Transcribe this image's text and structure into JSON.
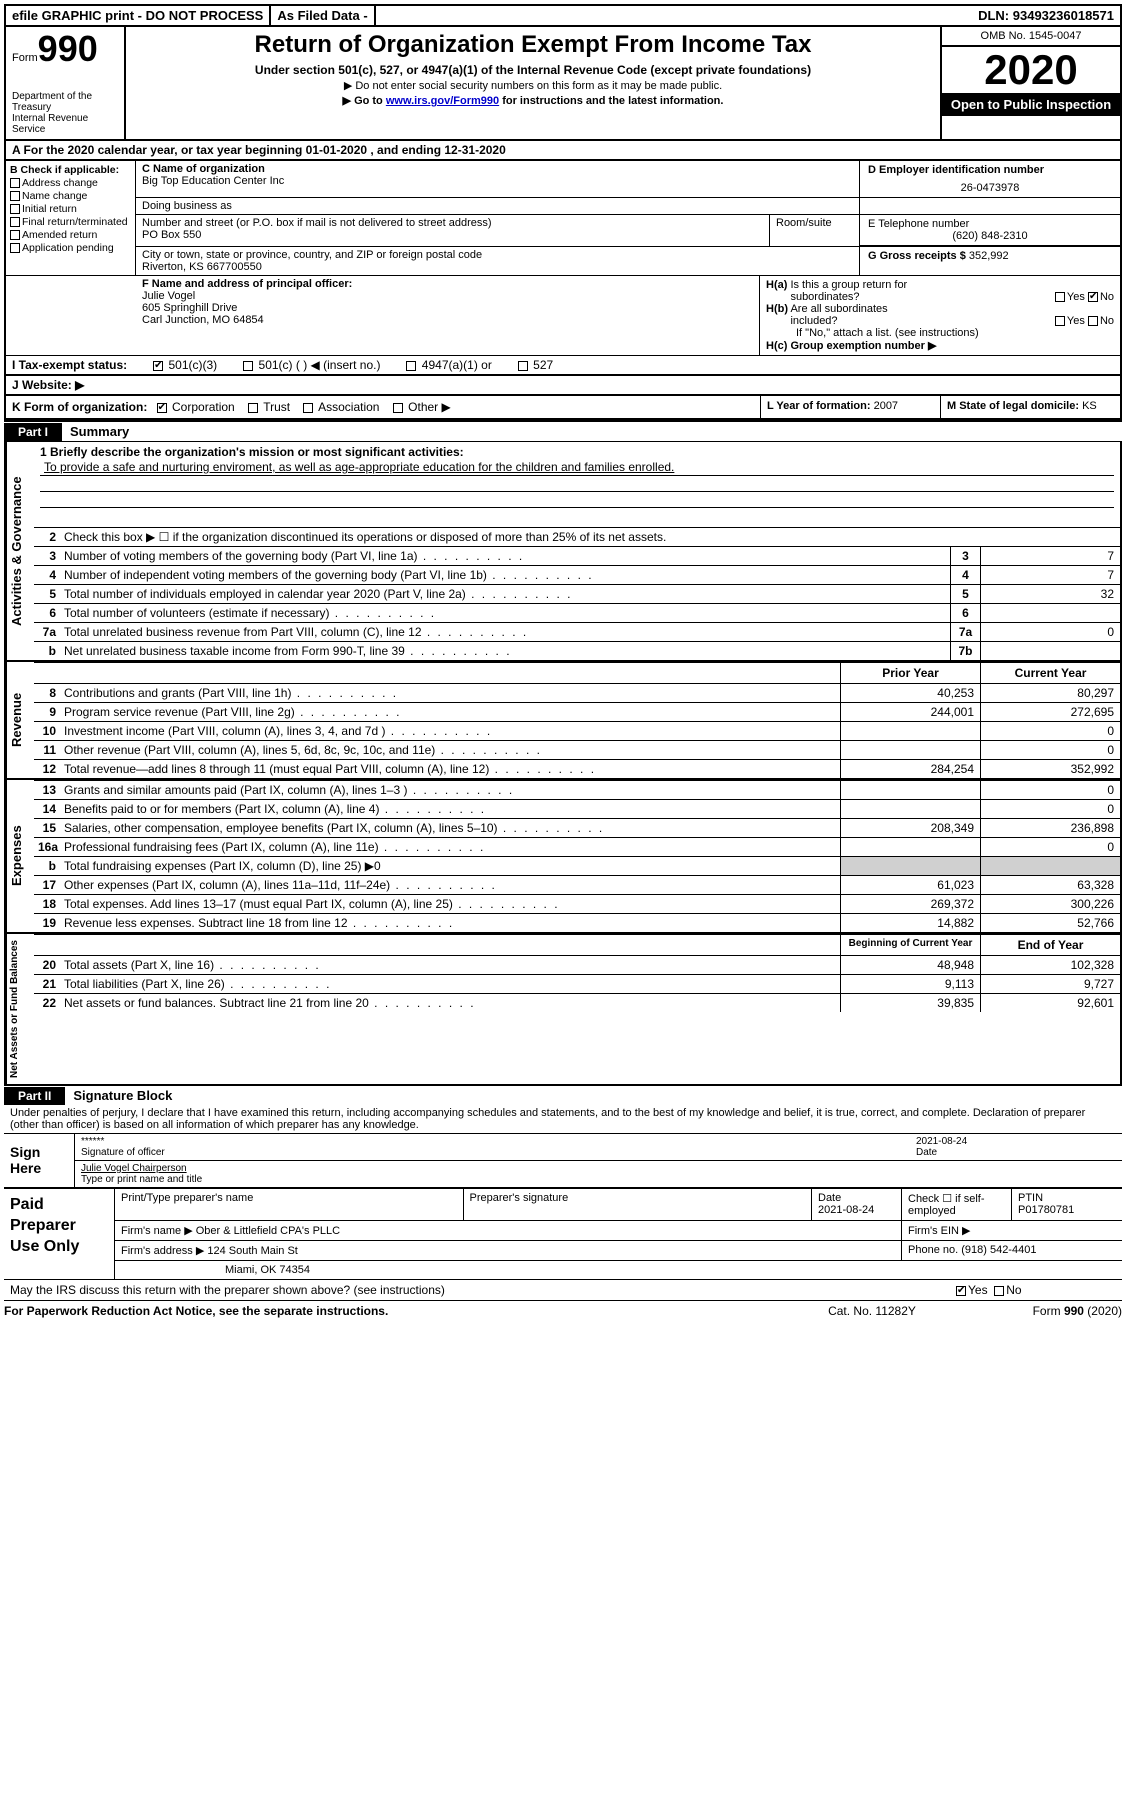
{
  "topbar": {
    "efile": "efile GRAPHIC print - DO NOT PROCESS",
    "asfiled": "As Filed Data -",
    "dln_label": "DLN:",
    "dln": "93493236018571"
  },
  "header": {
    "form_word": "Form",
    "form_num": "990",
    "dept": "Department of the Treasury\nInternal Revenue Service",
    "title": "Return of Organization Exempt From Income Tax",
    "subtitle": "Under section 501(c), 527, or 4947(a)(1) of the Internal Revenue Code (except private foundations)",
    "note1": "Do not enter social security numbers on this form as it may be made public.",
    "note2_pre": "Go to ",
    "note2_link": "www.irs.gov/Form990",
    "note2_post": " for instructions and the latest information.",
    "omb": "OMB No. 1545-0047",
    "year": "2020",
    "open": "Open to Public Inspection"
  },
  "row_a": "A  For the 2020 calendar year, or tax year beginning 01-01-2020   , and ending 12-31-2020",
  "section_b": {
    "hdr": "B Check if applicable:",
    "items": [
      "Address change",
      "Name change",
      "Initial return",
      "Final return/terminated",
      "Amended return",
      "Application pending"
    ]
  },
  "section_c": {
    "name_lbl": "C Name of organization",
    "name": "Big Top Education Center Inc",
    "dba_lbl": "Doing business as",
    "dba": "",
    "addr_lbl": "Number and street (or P.O. box if mail is not delivered to street address)",
    "room_lbl": "Room/suite",
    "addr": "PO Box 550",
    "city_lbl": "City or town, state or province, country, and ZIP or foreign postal code",
    "city": "Riverton, KS  667700550"
  },
  "section_d": {
    "lbl": "D Employer identification number",
    "val": "26-0473978"
  },
  "section_e": {
    "lbl": "E Telephone number",
    "val": "(620) 848-2310"
  },
  "section_g": {
    "lbl": "G Gross receipts $",
    "val": "352,992"
  },
  "section_f": {
    "lbl": "F  Name and address of principal officer:",
    "name": "Julie Vogel",
    "addr1": "605 Springhill Drive",
    "addr2": "Carl Junction, MO  64854"
  },
  "section_h": {
    "ha": "H(a)  Is this a group return for subordinates?",
    "hb": "H(b)  Are all subordinates included?",
    "hb_note": "If \"No,\" attach a list. (see instructions)",
    "hc": "H(c)  Group exemption number ▶",
    "yes": "Yes",
    "no": "No"
  },
  "section_i": {
    "lbl": "I  Tax-exempt status:",
    "opts": [
      "501(c)(3)",
      "501(c) (  ) ◀ (insert no.)",
      "4947(a)(1) or",
      "527"
    ]
  },
  "section_j": {
    "lbl": "J  Website: ▶",
    "val": ""
  },
  "section_k": {
    "lbl": "K Form of organization:",
    "opts": [
      "Corporation",
      "Trust",
      "Association",
      "Other ▶"
    ]
  },
  "section_l": {
    "lbl": "L Year of formation:",
    "val": "2007"
  },
  "section_m": {
    "lbl": "M State of legal domicile:",
    "val": "KS"
  },
  "part1": {
    "hdr": "Part I",
    "title": "Summary"
  },
  "mission_lbl": "1 Briefly describe the organization's mission or most significant activities:",
  "mission": "To provide a safe and nurturing enviroment, as well as age-appropriate education for the children and families enrolled.",
  "line2": "Check this box ▶ ☐ if the organization discontinued its operations or disposed of more than 25% of its net assets.",
  "gov_lines": [
    {
      "n": "3",
      "t": "Number of voting members of the governing body (Part VI, line 1a)",
      "b": "3",
      "v": "7"
    },
    {
      "n": "4",
      "t": "Number of independent voting members of the governing body (Part VI, line 1b)",
      "b": "4",
      "v": "7"
    },
    {
      "n": "5",
      "t": "Total number of individuals employed in calendar year 2020 (Part V, line 2a)",
      "b": "5",
      "v": "32"
    },
    {
      "n": "6",
      "t": "Total number of volunteers (estimate if necessary)",
      "b": "6",
      "v": ""
    },
    {
      "n": "7a",
      "t": "Total unrelated business revenue from Part VIII, column (C), line 12",
      "b": "7a",
      "v": "0"
    },
    {
      "n": "b",
      "t": "Net unrelated business taxable income from Form 990-T, line 39",
      "b": "7b",
      "v": ""
    }
  ],
  "col_hdrs": {
    "prior": "Prior Year",
    "current": "Current Year",
    "beg": "Beginning of Current Year",
    "end": "End of Year"
  },
  "rev_lines": [
    {
      "n": "8",
      "t": "Contributions and grants (Part VIII, line 1h)",
      "p": "40,253",
      "c": "80,297"
    },
    {
      "n": "9",
      "t": "Program service revenue (Part VIII, line 2g)",
      "p": "244,001",
      "c": "272,695"
    },
    {
      "n": "10",
      "t": "Investment income (Part VIII, column (A), lines 3, 4, and 7d )",
      "p": "",
      "c": "0"
    },
    {
      "n": "11",
      "t": "Other revenue (Part VIII, column (A), lines 5, 6d, 8c, 9c, 10c, and 11e)",
      "p": "",
      "c": "0"
    },
    {
      "n": "12",
      "t": "Total revenue—add lines 8 through 11 (must equal Part VIII, column (A), line 12)",
      "p": "284,254",
      "c": "352,992"
    }
  ],
  "exp_lines": [
    {
      "n": "13",
      "t": "Grants and similar amounts paid (Part IX, column (A), lines 1–3 )",
      "p": "",
      "c": "0"
    },
    {
      "n": "14",
      "t": "Benefits paid to or for members (Part IX, column (A), line 4)",
      "p": "",
      "c": "0"
    },
    {
      "n": "15",
      "t": "Salaries, other compensation, employee benefits (Part IX, column (A), lines 5–10)",
      "p": "208,349",
      "c": "236,898"
    },
    {
      "n": "16a",
      "t": "Professional fundraising fees (Part IX, column (A), line 11e)",
      "p": "",
      "c": "0"
    },
    {
      "n": "b",
      "t": "Total fundraising expenses (Part IX, column (D), line 25) ▶0",
      "p": "",
      "c": "",
      "gray": true
    },
    {
      "n": "17",
      "t": "Other expenses (Part IX, column (A), lines 11a–11d, 11f–24e)",
      "p": "61,023",
      "c": "63,328"
    },
    {
      "n": "18",
      "t": "Total expenses. Add lines 13–17 (must equal Part IX, column (A), line 25)",
      "p": "269,372",
      "c": "300,226"
    },
    {
      "n": "19",
      "t": "Revenue less expenses. Subtract line 18 from line 12",
      "p": "14,882",
      "c": "52,766"
    }
  ],
  "net_lines": [
    {
      "n": "20",
      "t": "Total assets (Part X, line 16)",
      "p": "48,948",
      "c": "102,328"
    },
    {
      "n": "21",
      "t": "Total liabilities (Part X, line 26)",
      "p": "9,113",
      "c": "9,727"
    },
    {
      "n": "22",
      "t": "Net assets or fund balances. Subtract line 21 from line 20",
      "p": "39,835",
      "c": "92,601"
    }
  ],
  "vlabels": {
    "gov": "Activities & Governance",
    "rev": "Revenue",
    "exp": "Expenses",
    "net": "Net Assets or Fund Balances"
  },
  "part2": {
    "hdr": "Part II",
    "title": "Signature Block",
    "decl": "Under penalties of perjury, I declare that I have examined this return, including accompanying schedules and statements, and to the best of my knowledge and belief, it is true, correct, and complete. Declaration of preparer (other than officer) is based on all information of which preparer has any knowledge."
  },
  "sign": {
    "here": "Sign Here",
    "stars": "******",
    "sig_lbl": "Signature of officer",
    "date": "2021-08-24",
    "date_lbl": "Date",
    "name": "Julie Vogel Chairperson",
    "name_lbl": "Type or print name and title"
  },
  "paid": {
    "hdr": "Paid Preparer Use Only",
    "c1": "Print/Type preparer's name",
    "c2": "Preparer's signature",
    "c3": "Date",
    "c3v": "2021-08-24",
    "c4": "Check ☐ if self-employed",
    "c5": "PTIN",
    "c5v": "P01780781",
    "firm_lbl": "Firm's name  ▶",
    "firm": "Ober & Littlefield CPA's PLLC",
    "ein_lbl": "Firm's EIN ▶",
    "ein": "",
    "addr_lbl": "Firm's address ▶",
    "addr1": "124 South Main St",
    "addr2": "Miami, OK  74354",
    "phone_lbl": "Phone no.",
    "phone": "(918) 542-4401"
  },
  "discuss": "May the IRS discuss this return with the preparer shown above? (see instructions)",
  "discuss_yes": "Yes",
  "discuss_no": "No",
  "footer": {
    "l": "For Paperwork Reduction Act Notice, see the separate instructions.",
    "m": "Cat. No. 11282Y",
    "r": "Form 990 (2020)"
  }
}
